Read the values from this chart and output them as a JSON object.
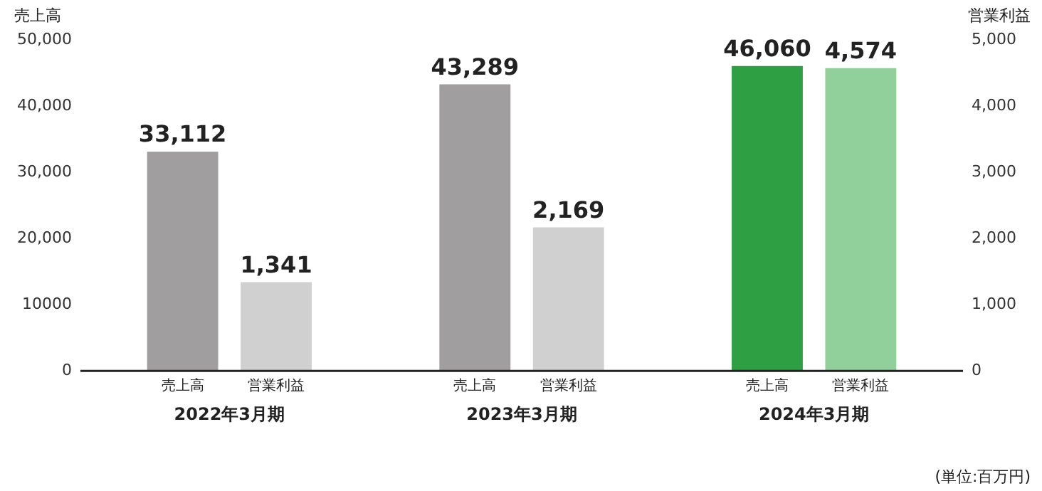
{
  "chart_data": {
    "type": "bar",
    "ylabel": "売上高",
    "y2label": "営業利益",
    "categories": [
      "2022年3月期",
      "2023年3月期",
      "2024年3月期"
    ],
    "series": [
      {
        "name": "売上高",
        "colors": [
          "#a09e9e",
          "#a09e9e",
          "#2ea043"
        ],
        "values": [
          33112,
          43289,
          46060
        ],
        "value_labels": [
          "33,112",
          "43,289",
          "46,060"
        ]
      },
      {
        "name": "営業利益",
        "colors": [
          "#d0d0d0",
          "#d0d0d0",
          "#92d09b"
        ],
        "values": [
          1341,
          2169,
          4574
        ],
        "value_labels": [
          "1,341",
          "2,169",
          "4,574"
        ],
        "axis": "y2"
      }
    ],
    "ylim": [
      0,
      50000
    ],
    "yticks": [
      0,
      {
        "value": 10000,
        "label": "10000"
      },
      {
        "value": 20000,
        "label": "20,000"
      },
      {
        "value": 30000,
        "label": "30,000"
      },
      {
        "value": 40000,
        "label": "40,000"
      },
      {
        "value": 50000,
        "label": "50,000"
      }
    ],
    "y2lim": [
      0,
      5000
    ],
    "y2ticks": [
      0,
      {
        "value": 1000,
        "label": "1,000"
      },
      {
        "value": 2000,
        "label": "2,000"
      },
      {
        "value": 3000,
        "label": "3,000"
      },
      {
        "value": 4000,
        "label": "4,000"
      },
      {
        "value": 5000,
        "label": "5,000"
      }
    ],
    "grid": false,
    "legend": false,
    "annotations": [
      "(単位:百万円)"
    ]
  }
}
